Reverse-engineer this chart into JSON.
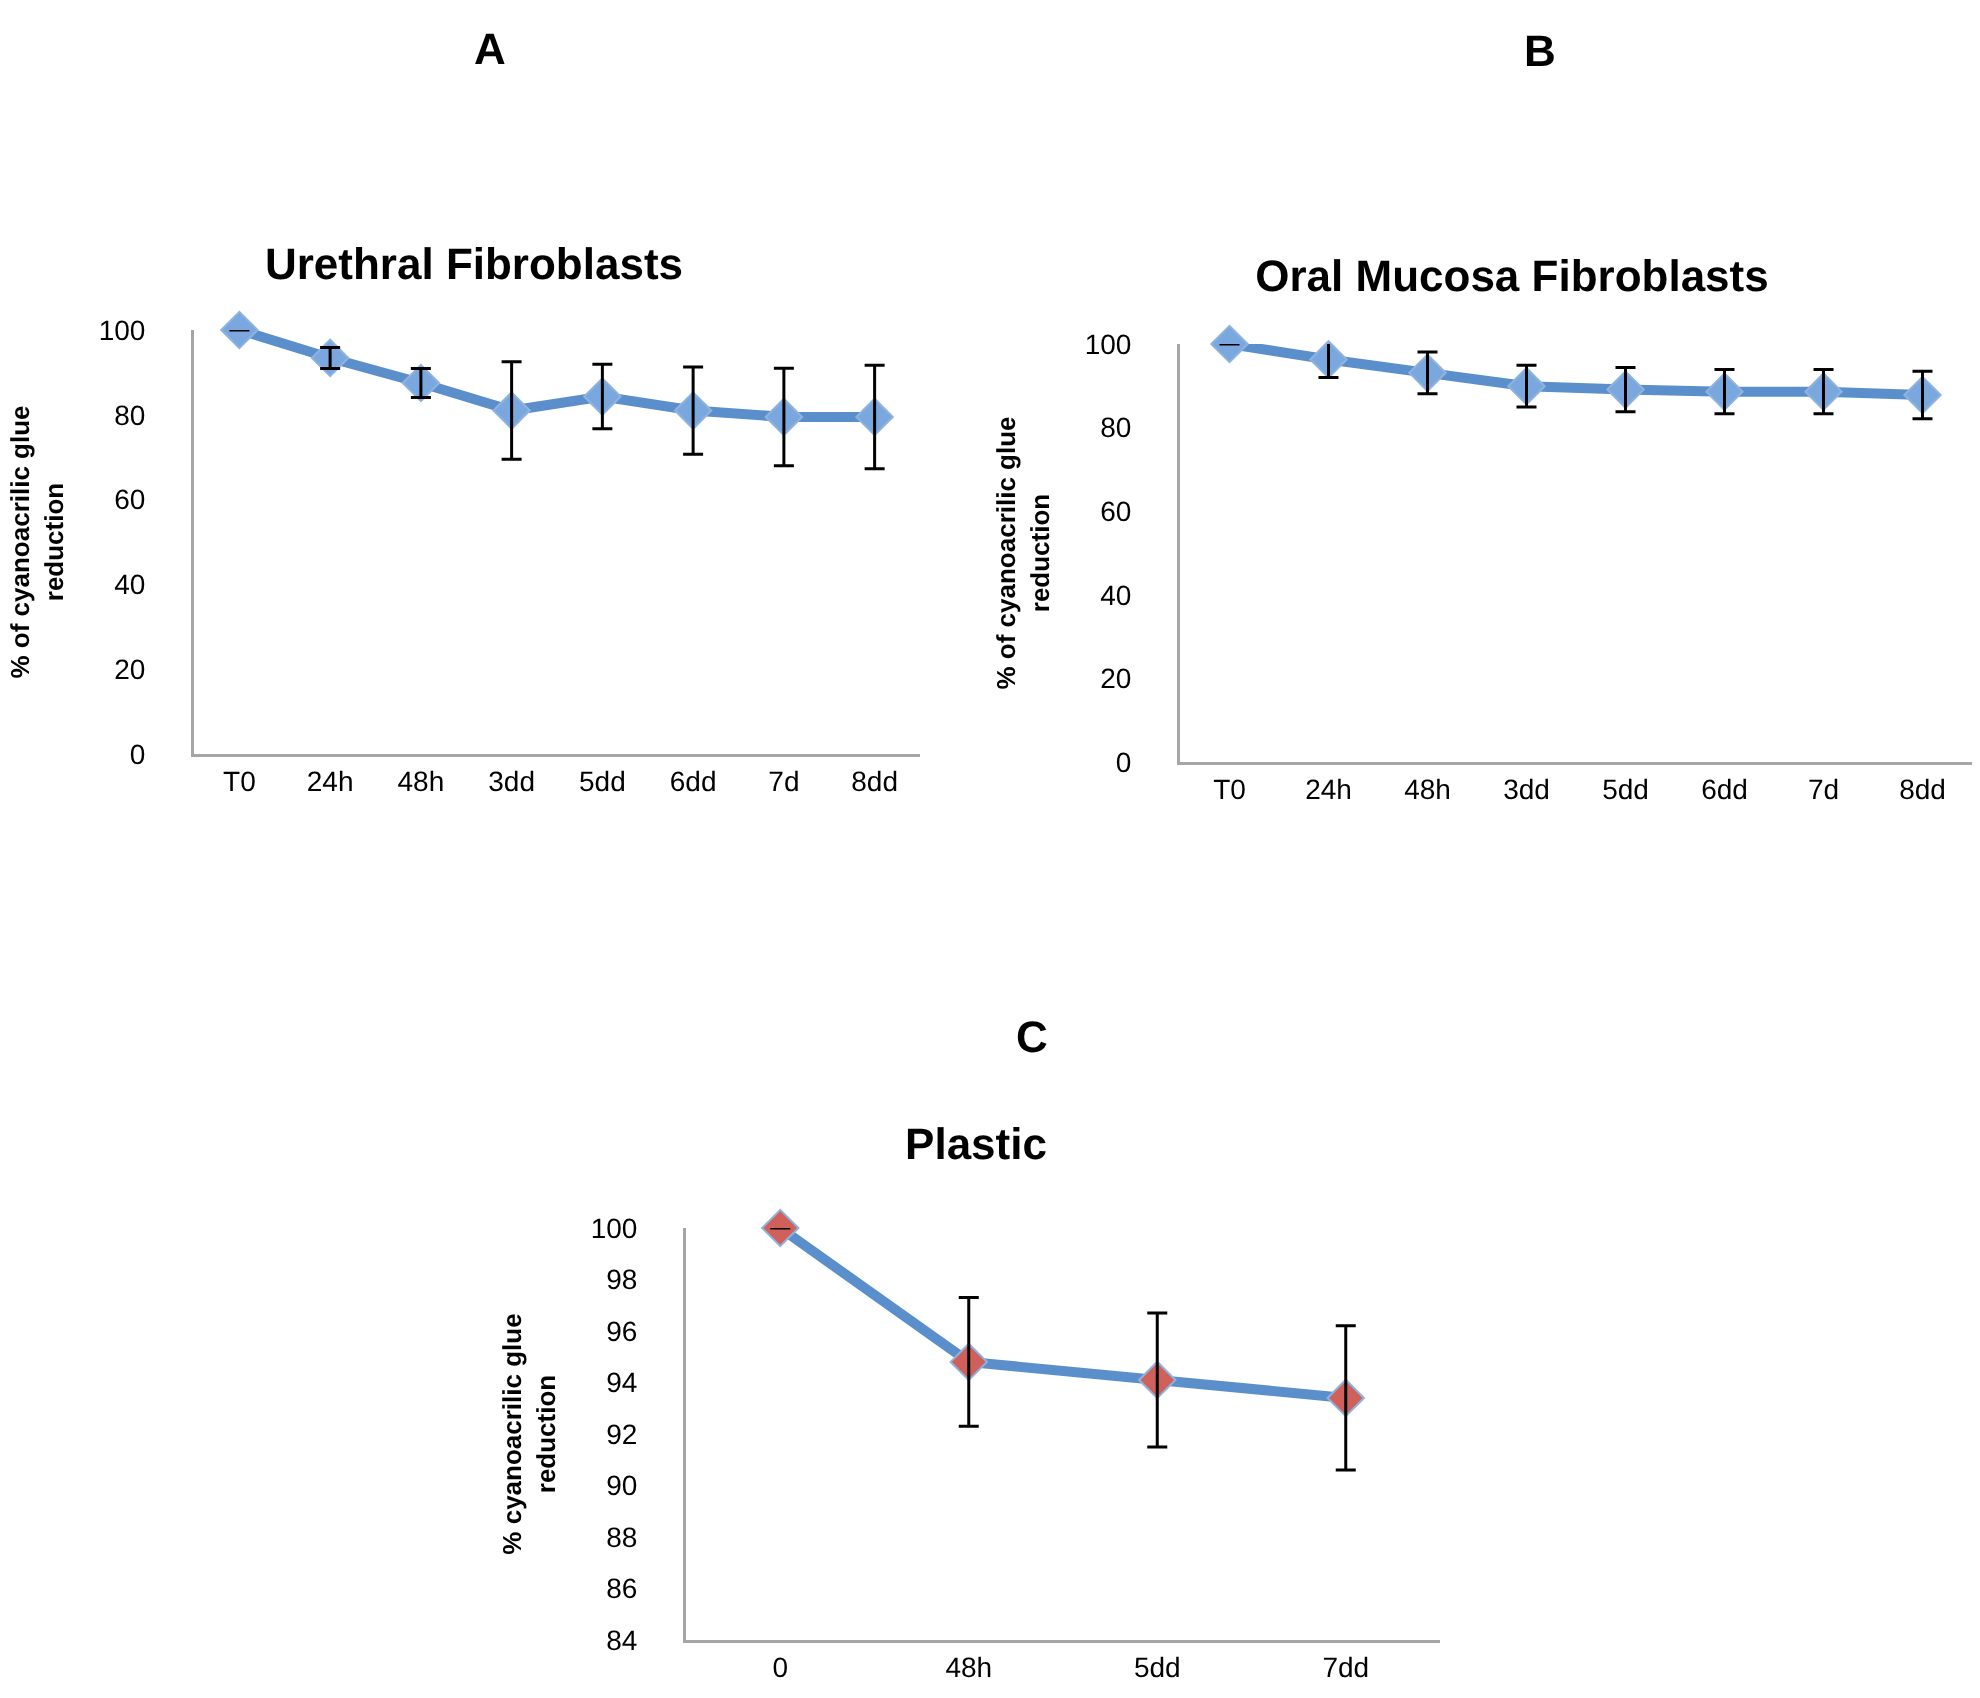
{
  "chart_data": [
    {
      "type": "line",
      "title": "Urethral Fibroblasts",
      "ylabel": "% of cyanoacrilic glue\nreduction",
      "annotations": [
        "A"
      ],
      "categories": [
        "T0",
        "24h",
        "48h",
        "3dd",
        "5dd",
        "6dd",
        "7d",
        "8dd"
      ],
      "series": [
        {
          "color": "#5b8fcc",
          "values": [
            100,
            93.4,
            87.5,
            81,
            84.3,
            81,
            79.5,
            79.5
          ],
          "errors": [
            null,
            2.5,
            3.4,
            11.5,
            7.6,
            10.3,
            11.5,
            12.2
          ]
        }
      ],
      "ylim": [
        0,
        100
      ],
      "yticks": [
        0,
        20,
        40,
        60,
        80,
        100
      ],
      "grid": false,
      "marker": "diamond",
      "line_style": "solid"
    },
    {
      "type": "line",
      "title": "Oral Mucosa Fibroblasts",
      "ylabel": "% of cyanoacrilic glue\nreduction",
      "annotations": [
        "B"
      ],
      "categories": [
        "T0",
        "24h",
        "48h",
        "3dd",
        "5dd",
        "6dd",
        "7d",
        "8dd"
      ],
      "series": [
        {
          "color": "#5b8fcc",
          "values": [
            100,
            96.3,
            93.1,
            89.9,
            89.1,
            88.6,
            88.6,
            87.8
          ],
          "errors": [
            null,
            4.3,
            5,
            5,
            5.3,
            5.3,
            5.3,
            5.7
          ]
        }
      ],
      "ylim": [
        0,
        100
      ],
      "yticks": [
        0,
        20,
        40,
        60,
        80,
        100
      ],
      "grid": false,
      "marker": "diamond",
      "line_style": "solid"
    },
    {
      "type": "line",
      "title": "Plastic",
      "ylabel": "% cyanoacrilic glue\nreduction",
      "annotations": [
        "C"
      ],
      "categories": [
        "0",
        "48h",
        "5dd",
        "7dd"
      ],
      "series": [
        {
          "color": "#5b8fcc",
          "colors": [
            "#d0605a",
            "#d0605a",
            "#d0605a",
            "#d0605a"
          ],
          "values": [
            100,
            94.8,
            94.1,
            93.4
          ],
          "errors": [
            null,
            2.5,
            2.6,
            2.8
          ]
        }
      ],
      "ylim": [
        84,
        100
      ],
      "yticks": [
        84,
        86,
        88,
        90,
        92,
        94,
        96,
        98,
        100
      ],
      "grid": false,
      "marker": "diamond",
      "line_style": "solid"
    }
  ]
}
